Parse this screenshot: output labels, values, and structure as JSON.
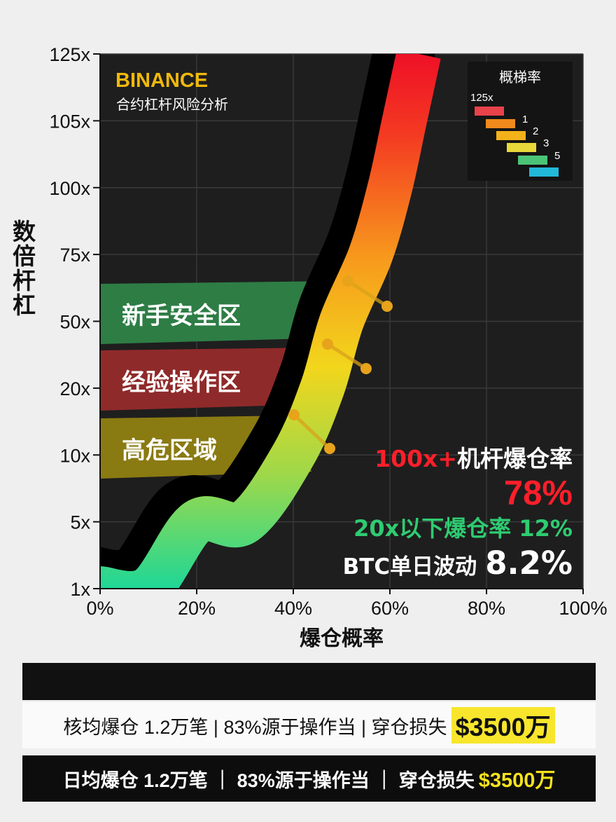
{
  "chart_data": {
    "type": "line",
    "title": "BINANCE",
    "subtitle": "合约杠杆风险分析",
    "xlabel": "爆仓概率",
    "ylabel": "数倍杆杠",
    "x_ticks": [
      "0%",
      "20%",
      "40%",
      "60%",
      "80%",
      "100%"
    ],
    "y_ticks": [
      "1x",
      "5x",
      "10x",
      "20x",
      "50x",
      "75x",
      "100x",
      "105x",
      "125x"
    ],
    "xlim": [
      0,
      100
    ],
    "grid": true,
    "colors": {
      "background": "#1e1e1e",
      "brand": "#f0b90b",
      "danger": "#ff1f2a",
      "safe": "#2ecc71",
      "highlight": "#f7e62c"
    },
    "series": [
      {
        "name": "",
        "points": [
          {
            "x": 0,
            "y": "1x"
          },
          {
            "x": 10,
            "y": "1x"
          },
          {
            "x": 20,
            "y": "5x"
          },
          {
            "x": 30,
            "y": "5x"
          },
          {
            "x": 40,
            "y": "10x"
          },
          {
            "x": 46,
            "y": "20x"
          },
          {
            "x": 50,
            "y": "50x"
          },
          {
            "x": 56,
            "y": "75x"
          },
          {
            "x": 60,
            "y": "100x"
          },
          {
            "x": 63,
            "y": "105x"
          },
          {
            "x": 66,
            "y": "125x"
          }
        ]
      }
    ],
    "zones": [
      {
        "label": "新手安全区",
        "color": "#2e7d45"
      },
      {
        "label": "经验操作区",
        "color": "#8f2a2a"
      },
      {
        "label": "高危区域",
        "color": "#8a7a12"
      }
    ],
    "legend": {
      "title": "概梯率",
      "placement": "top-right",
      "items": [
        {
          "label": "125x",
          "color": "#e8424a"
        },
        {
          "label": "1",
          "color": "#f08a1c"
        },
        {
          "label": "2",
          "color": "#f4b21a"
        },
        {
          "label": "3",
          "color": "#e9d83a"
        },
        {
          "label": "5",
          "color": "#4cc478"
        },
        {
          "label": "",
          "color": "#22b8d8"
        }
      ]
    },
    "annotations": {
      "high_rate_label": "100x+机杆爆仓率",
      "high_rate_prefix": "100x+",
      "high_rate_suffix": "机杆爆仓率",
      "high_rate_value": "78%",
      "low_rate_text": "20x以下爆仓率 12%",
      "btc_label": "BTC单日波动",
      "btc_value": "8.2%"
    }
  },
  "footer": {
    "light": {
      "text": "核均爆仓 1.2万笔 | 83%源于操作当 | 穿仓损失",
      "highlight": "$3500万"
    },
    "dark": {
      "text": "日均爆仓 1.2万笔 ｜ 83%源于操作当 ｜ 穿仓损失",
      "highlight": "$3500万"
    }
  }
}
